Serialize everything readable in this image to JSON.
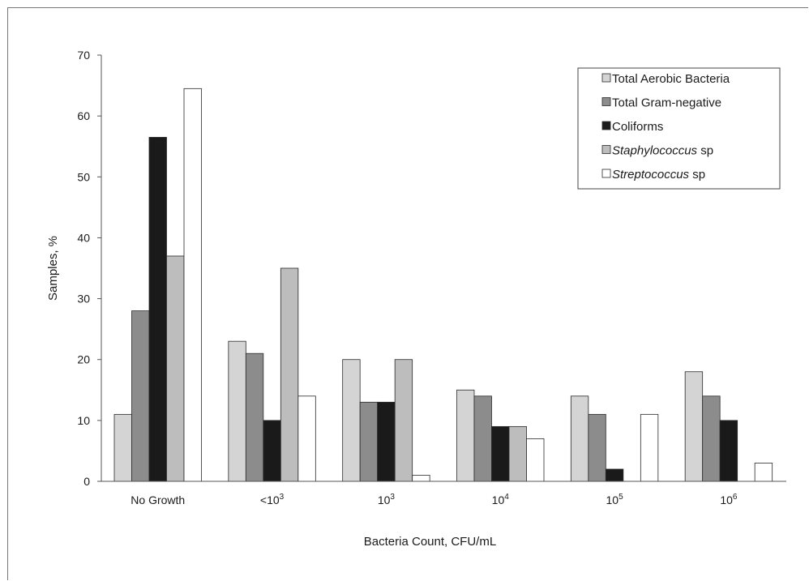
{
  "chart_data": {
    "type": "bar",
    "title": "",
    "xlabel": "Bacteria Count, CFU/mL",
    "ylabel": "Samples, %",
    "ylim": [
      0,
      70
    ],
    "yticks": [
      0,
      10,
      20,
      30,
      40,
      50,
      60,
      70
    ],
    "grid": false,
    "legend_position": "top-right",
    "categories": [
      {
        "base": "No Growth",
        "sup": ""
      },
      {
        "base": "<10",
        "sup": "3"
      },
      {
        "base": "10",
        "sup": "3"
      },
      {
        "base": "10",
        "sup": "4"
      },
      {
        "base": "10",
        "sup": "5"
      },
      {
        "base": "10",
        "sup": "6"
      }
    ],
    "series": [
      {
        "name": "Total Aerobic Bacteria",
        "name_italic": "",
        "name_rest": "",
        "color": "#d4d4d4",
        "values": [
          11,
          23,
          20,
          15,
          14,
          18
        ]
      },
      {
        "name": "Total Gram-negative",
        "name_italic": "",
        "name_rest": "",
        "color": "#8c8c8c",
        "values": [
          28,
          21,
          13,
          14,
          11,
          14
        ]
      },
      {
        "name": "Coliforms",
        "name_italic": "",
        "name_rest": "",
        "color": "#1a1a1a",
        "values": [
          56.5,
          10,
          13,
          9,
          2,
          10
        ]
      },
      {
        "name": "",
        "name_italic": "Staphylococcus",
        "name_rest": " sp",
        "color": "#bdbdbd",
        "values": [
          37,
          35,
          20,
          9,
          0,
          0
        ]
      },
      {
        "name": "",
        "name_italic": "Streptococcus",
        "name_rest": " sp",
        "color": "#ffffff",
        "values": [
          64.5,
          14,
          1,
          7,
          11,
          3
        ]
      }
    ]
  }
}
